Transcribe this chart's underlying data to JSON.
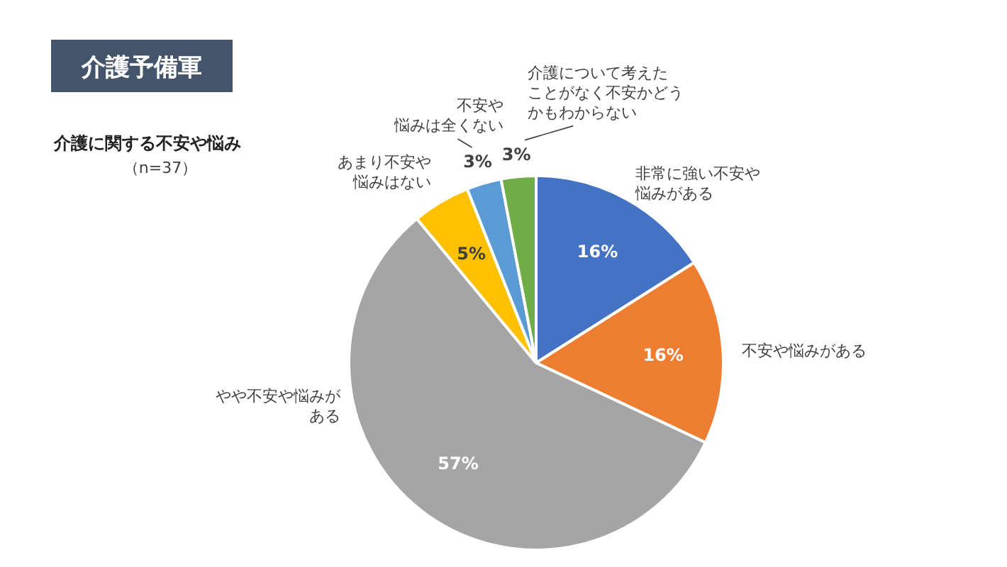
{
  "chart_data": {
    "type": "pie",
    "title": "介護予備軍",
    "subtitle": "介護に関する不安や悩み",
    "annotations": [
      "（n=37）"
    ],
    "categories": [
      "非常に強い不安や悩みがある",
      "不安や悩みがある",
      "やや不安や悩みがある",
      "あまり不安や悩みはない",
      "不安や悩みは全くない",
      "介護について考えたことがなく不安かどうかもわからない"
    ],
    "values": [
      16,
      16,
      57,
      5,
      3,
      3
    ],
    "value_labels": [
      "16%",
      "16%",
      "57%",
      "5%",
      "3%",
      "3%"
    ],
    "colors": [
      "#4472c4",
      "#ed7d31",
      "#a5a5a5",
      "#ffc000",
      "#5b9bd5",
      "#70ad47"
    ]
  }
}
